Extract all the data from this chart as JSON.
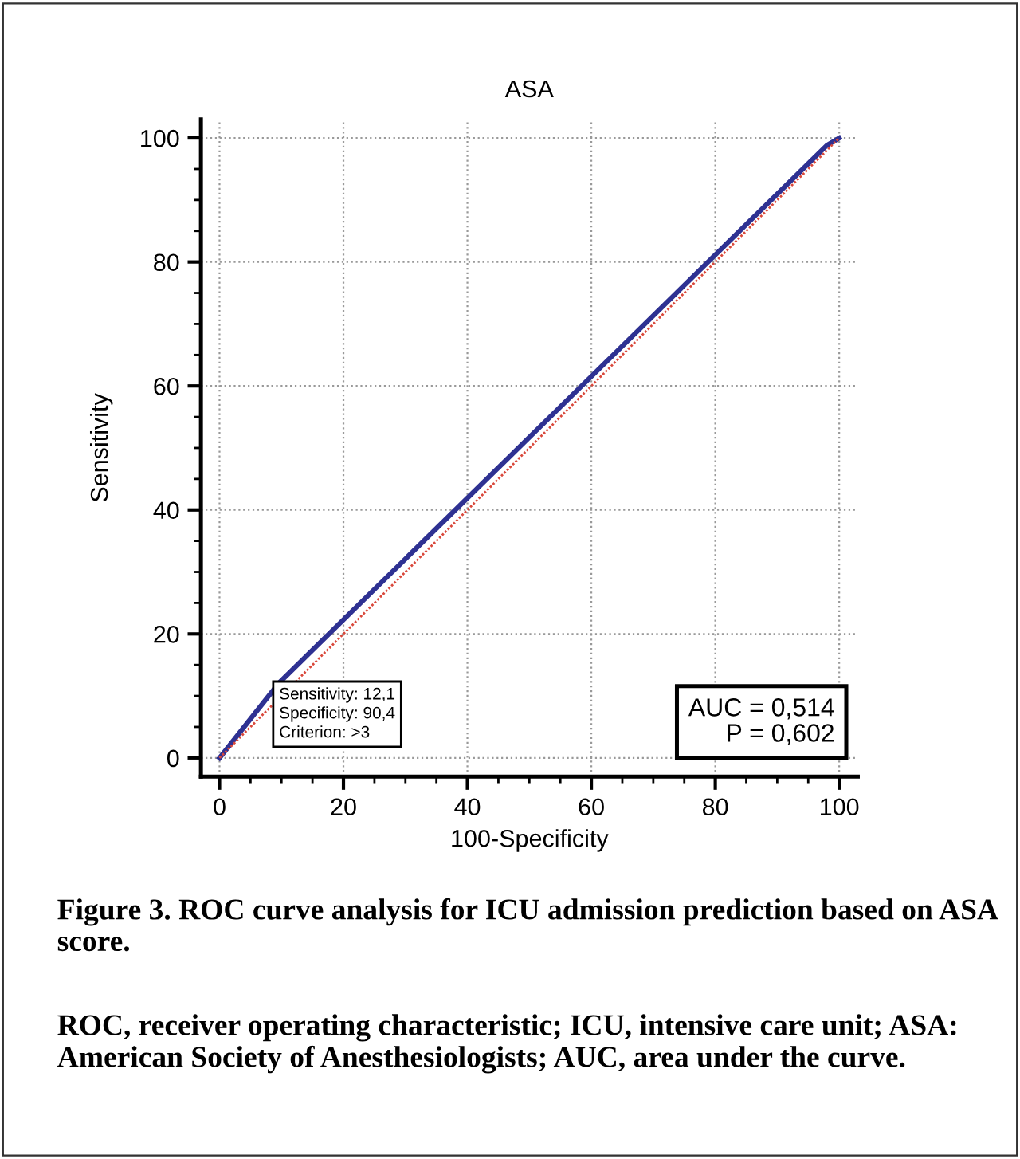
{
  "chart_data": {
    "type": "line",
    "title": "ASA",
    "xlabel": "100-Specificity",
    "ylabel": "Sensitivity",
    "x": [
      0,
      9.6,
      98,
      100
    ],
    "series": [
      {
        "color": "#2e3192",
        "values": [
          0,
          12.1,
          98.8,
          100
        ],
        "line_style": "solid"
      },
      {
        "type": "line",
        "x": [
          0,
          100
        ],
        "color": "#d9483b",
        "values": [
          0,
          100
        ],
        "line_style": "dotted"
      }
    ],
    "xlim": [
      -3,
      103
    ],
    "ylim": [
      -3,
      103
    ],
    "xticks": [
      0,
      20,
      40,
      60,
      80,
      100
    ],
    "yticks": [
      0,
      20,
      40,
      60,
      80,
      100
    ],
    "grid": true,
    "marker": "none",
    "annotations": [
      {
        "text": "Sensitivity: 12,1\nSpecificity: 90,4\nCriterion: >3",
        "x": 9.6,
        "y": 12.1
      },
      "AUC = 0,514\nP = 0,602",
      "Figure 3. ROC curve analysis for ICU admission prediction based on ASA score.",
      "ROC, receiver operating characteristic; ICU, intensive care unit; ASA: American Society of Anesthesiologists; AUC, area under the curve."
    ]
  }
}
